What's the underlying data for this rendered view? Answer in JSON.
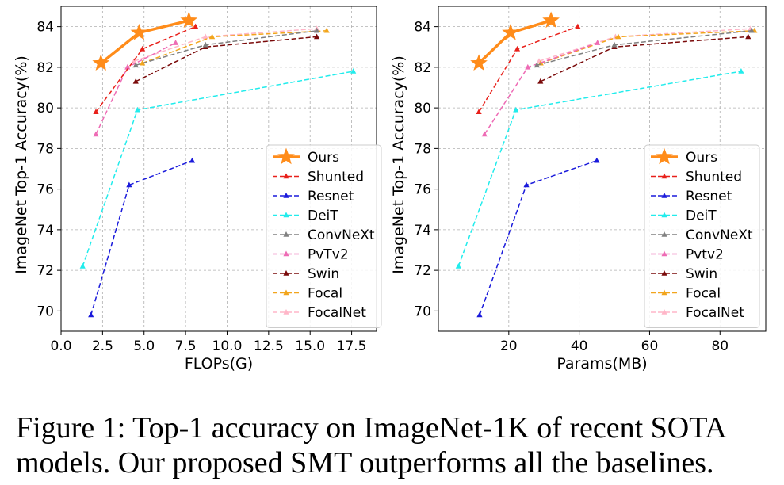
{
  "caption": {
    "line1": "Figure 1: Top-1 accuracy on ImageNet-1K of recent SOTA",
    "line2": "models. Our proposed SMT outperforms all the baselines."
  },
  "chart_data": [
    {
      "type": "line",
      "xlabel": "FLOPs(G)",
      "ylabel": "ImageNet Top-1 Accuracy(%)",
      "xlim": [
        0,
        19
      ],
      "ylim": [
        69,
        85
      ],
      "xticks": [
        0,
        2.5,
        5,
        7.5,
        10,
        12.5,
        15,
        17.5
      ],
      "xtick_labels": [
        "0.0",
        "2.5",
        "5.0",
        "7.5",
        "10.0",
        "12.5",
        "15.0",
        "17.5"
      ],
      "yticks": [
        70,
        72,
        74,
        76,
        78,
        80,
        82,
        84
      ],
      "ytick_labels": [
        "70",
        "72",
        "74",
        "76",
        "78",
        "80",
        "82",
        "84"
      ],
      "grid": true,
      "legend": "lower-right",
      "series": [
        {
          "name": "Ours",
          "color": "#ff8c1a",
          "style": "solid",
          "marker": "star",
          "x": [
            2.4,
            4.7,
            7.7
          ],
          "y": [
            82.2,
            83.7,
            84.3
          ]
        },
        {
          "name": "Shunted",
          "color": "#e8201a",
          "style": "dashed",
          "marker": "triangle",
          "x": [
            2.1,
            4.9,
            8.1
          ],
          "y": [
            79.8,
            82.9,
            84.0
          ]
        },
        {
          "name": "Resnet",
          "color": "#1a1adb",
          "style": "dashed",
          "marker": "triangle",
          "x": [
            1.8,
            4.1,
            7.9
          ],
          "y": [
            69.8,
            76.2,
            77.4
          ]
        },
        {
          "name": "DeiT",
          "color": "#22ecec",
          "style": "dashed",
          "marker": "triangle",
          "x": [
            1.3,
            4.6,
            17.6
          ],
          "y": [
            72.2,
            79.9,
            81.8
          ]
        },
        {
          "name": "ConvNeXt",
          "color": "#808080",
          "style": "dashed",
          "marker": "triangle",
          "x": [
            4.5,
            8.7,
            15.4
          ],
          "y": [
            82.1,
            83.1,
            83.8
          ]
        },
        {
          "name": "PvTv2",
          "color": "#ee6bb5",
          "style": "dashed",
          "marker": "triangle",
          "x": [
            2.1,
            4.0,
            6.9
          ],
          "y": [
            78.7,
            82.0,
            83.2
          ]
        },
        {
          "name": "Swin",
          "color": "#7a0a0a",
          "style": "dashed",
          "marker": "triangle",
          "x": [
            4.5,
            8.7,
            15.4
          ],
          "y": [
            81.3,
            83.0,
            83.5
          ]
        },
        {
          "name": "Focal",
          "color": "#f2a51c",
          "style": "dashed",
          "marker": "triangle",
          "x": [
            4.9,
            9.1,
            16.0
          ],
          "y": [
            82.2,
            83.5,
            83.8
          ]
        },
        {
          "name": "FocalNet",
          "color": "#ffb6c8",
          "style": "dashed",
          "marker": "triangle",
          "x": [
            4.4,
            8.7,
            15.4
          ],
          "y": [
            82.3,
            83.5,
            83.9
          ]
        }
      ]
    },
    {
      "type": "line",
      "xlabel": "Params(MB)",
      "ylabel": "ImageNet Top-1 Accuracy(%)",
      "xlim": [
        0,
        93
      ],
      "ylim": [
        69,
        85
      ],
      "xticks": [
        20,
        40,
        60,
        80
      ],
      "xtick_labels": [
        "20",
        "40",
        "60",
        "80"
      ],
      "yticks": [
        70,
        72,
        74,
        76,
        78,
        80,
        82,
        84
      ],
      "ytick_labels": [
        "70",
        "72",
        "74",
        "76",
        "78",
        "80",
        "82",
        "84"
      ],
      "grid": true,
      "legend": "lower-right",
      "series": [
        {
          "name": "Ours",
          "color": "#ff8c1a",
          "style": "solid",
          "marker": "star",
          "x": [
            11.5,
            20.5,
            32
          ],
          "y": [
            82.2,
            83.7,
            84.3
          ]
        },
        {
          "name": "Shunted",
          "color": "#e8201a",
          "style": "dashed",
          "marker": "triangle",
          "x": [
            11.5,
            22.4,
            39.6
          ],
          "y": [
            79.8,
            82.9,
            84.0
          ]
        },
        {
          "name": "Resnet",
          "color": "#1a1adb",
          "style": "dashed",
          "marker": "triangle",
          "x": [
            11.7,
            25.0,
            45.0
          ],
          "y": [
            69.8,
            76.2,
            77.4
          ]
        },
        {
          "name": "DeiT",
          "color": "#22ecec",
          "style": "dashed",
          "marker": "triangle",
          "x": [
            5.7,
            22.0,
            86.0
          ],
          "y": [
            72.2,
            79.9,
            81.8
          ]
        },
        {
          "name": "ConvNeXt",
          "color": "#808080",
          "style": "dashed",
          "marker": "triangle",
          "x": [
            28.0,
            50.0,
            89.0
          ],
          "y": [
            82.1,
            83.1,
            83.8
          ]
        },
        {
          "name": "Pvtv2",
          "color": "#ee6bb5",
          "style": "dashed",
          "marker": "triangle",
          "x": [
            13.1,
            25.4,
            45.2
          ],
          "y": [
            78.7,
            82.0,
            83.2
          ]
        },
        {
          "name": "Swin",
          "color": "#7a0a0a",
          "style": "dashed",
          "marker": "triangle",
          "x": [
            29.0,
            50.0,
            88.0
          ],
          "y": [
            81.3,
            83.0,
            83.5
          ]
        },
        {
          "name": "Focal",
          "color": "#f2a51c",
          "style": "dashed",
          "marker": "triangle",
          "x": [
            29.1,
            51.1,
            89.8
          ],
          "y": [
            82.2,
            83.5,
            83.8
          ]
        },
        {
          "name": "FocalNet",
          "color": "#ffb6c8",
          "style": "dashed",
          "marker": "triangle",
          "x": [
            28.6,
            50.3,
            88.7
          ],
          "y": [
            82.3,
            83.5,
            83.9
          ]
        }
      ]
    }
  ]
}
